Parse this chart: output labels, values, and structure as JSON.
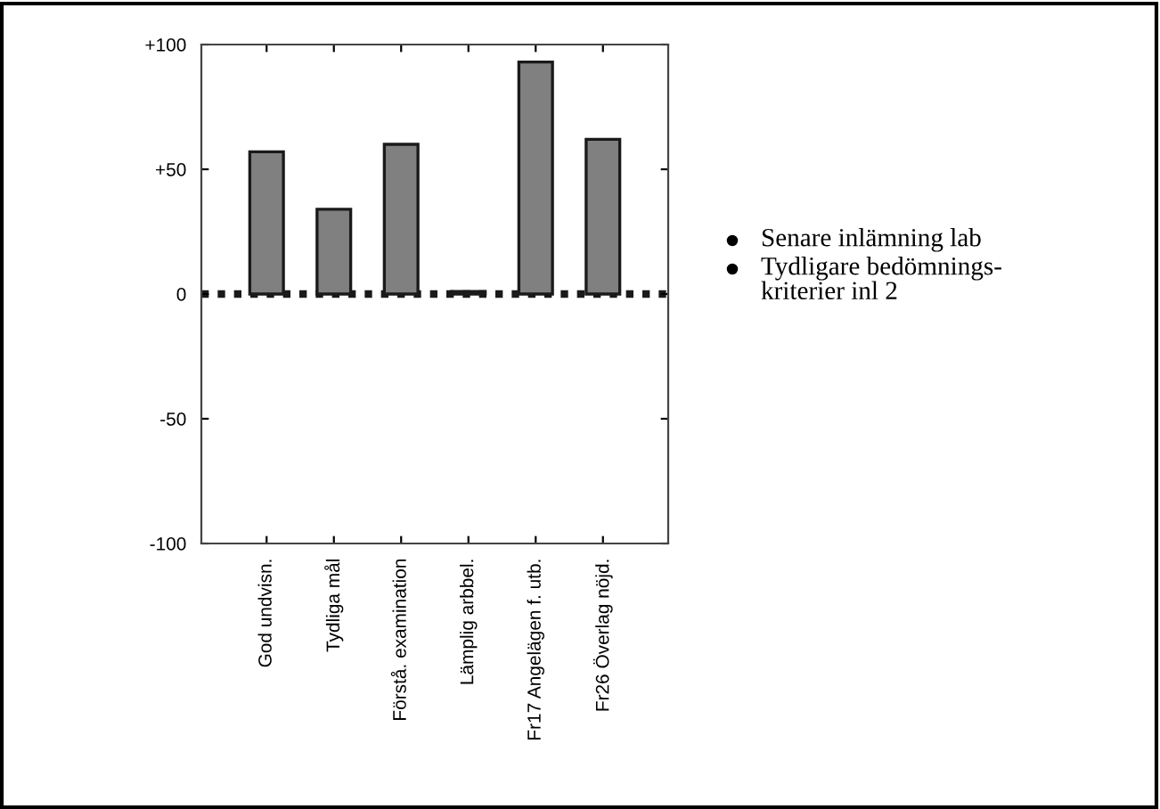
{
  "chart_data": {
    "type": "bar",
    "categories": [
      "God undvisn.",
      "Tydliga mål",
      "Förstå. examination",
      "Lämplig arbbel.",
      "Fr17 Angelägen f. utb.",
      "Fr26 Överlag nöjd."
    ],
    "values": [
      57,
      34,
      60,
      1,
      93,
      62
    ],
    "color": "#808080",
    "ylim": [
      -100,
      100
    ],
    "yticks": [
      {
        "value": 100,
        "label": "+100"
      },
      {
        "value": 50,
        "label": "+50"
      },
      0,
      {
        "value": -50,
        "label": "-50"
      },
      {
        "value": -100,
        "label": "-100"
      }
    ],
    "ref_lines": [
      {
        "axis": "y",
        "value": 0,
        "color": "#1a1a1a",
        "line_style": "dotted"
      }
    ],
    "annotations": [
      "Senare inlämning lab",
      "Tydligare bedömnings-\nkriterier inl 2"
    ],
    "grid": false,
    "legend": false
  }
}
